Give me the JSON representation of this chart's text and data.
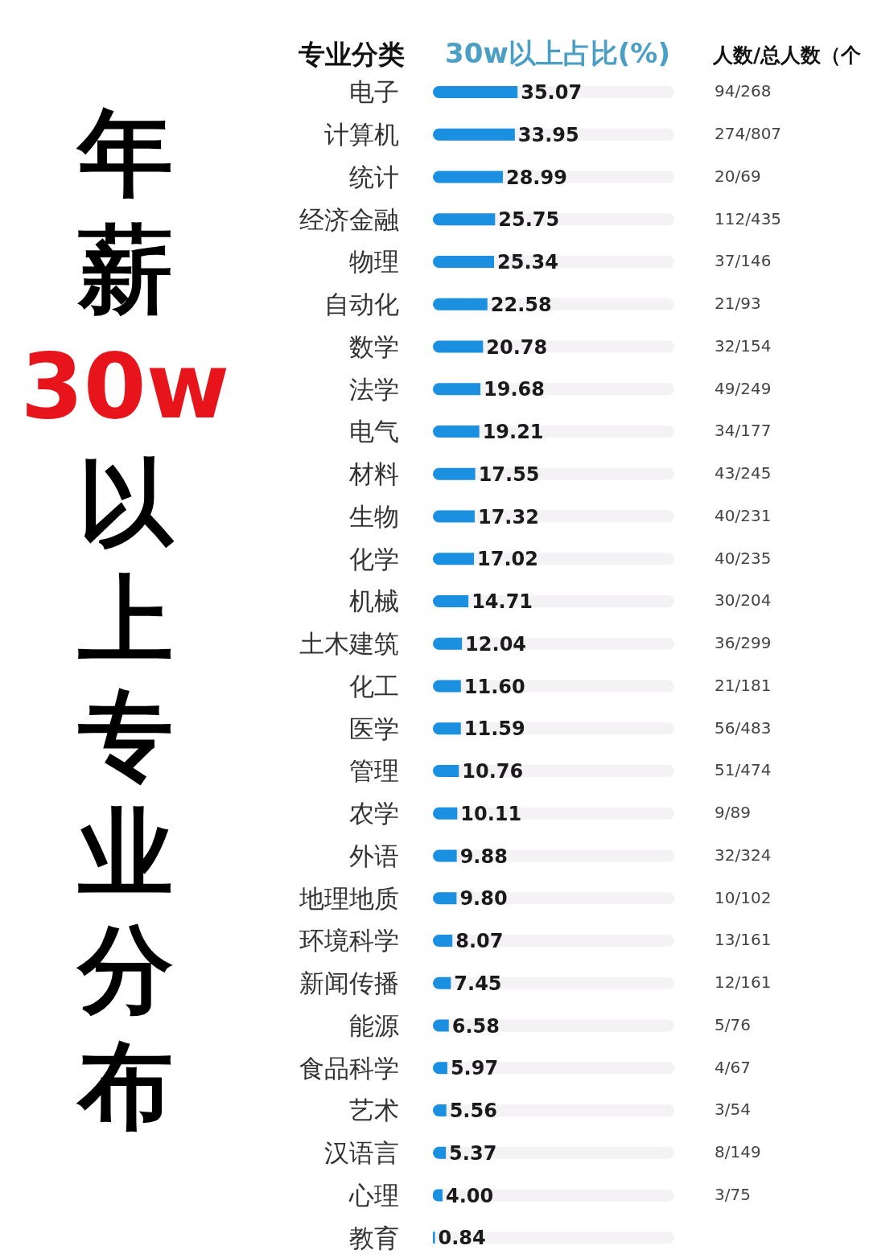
{
  "chart_data": {
    "type": "bar",
    "orientation": "horizontal",
    "title": "年薪30w以上专业分布",
    "ylabel": "专业分类",
    "xlabel": "30w以上占比(%)",
    "categories": [
      "电子",
      "计算机",
      "统计",
      "经济金融",
      "物理",
      "自动化",
      "数学",
      "法学",
      "电气",
      "材料",
      "生物",
      "化学",
      "机械",
      "土木建筑",
      "化工",
      "医学",
      "管理",
      "农学",
      "外语",
      "地理地质",
      "环境科学",
      "新闻传播",
      "能源",
      "食品科学",
      "艺术",
      "汉语言",
      "心理",
      "教育"
    ],
    "values": [
      35.07,
      33.95,
      28.99,
      25.75,
      25.34,
      22.58,
      20.78,
      19.68,
      19.21,
      17.55,
      17.32,
      17.02,
      14.71,
      12.04,
      11.6,
      11.59,
      10.76,
      10.11,
      9.88,
      9.8,
      8.07,
      7.45,
      6.58,
      5.97,
      5.56,
      5.37,
      4.0,
      0.84
    ],
    "value_labels": [
      "35.07",
      "33.95",
      "28.99",
      "25.75",
      "25.34",
      "22.58",
      "20.78",
      "19.68",
      "19.21",
      "17.55",
      "17.32",
      "17.02",
      "14.71",
      "12.04",
      "11.60",
      "11.59",
      "10.76",
      "10.11",
      "9.88",
      "9.80",
      "8.07",
      "7.45",
      "6.58",
      "5.97",
      "5.56",
      "5.37",
      "4.00",
      "0.84"
    ],
    "color": "#1b8fe0",
    "xlim": [
      0,
      100
    ],
    "tick_labels": "y",
    "legend": false,
    "grid": false,
    "annotations": [
      "人数/总人数（个",
      "94/268",
      "274/807",
      "20/69",
      "112/435",
      "37/146",
      "21/93",
      "32/154",
      "49/249",
      "34/177",
      "43/245",
      "40/231",
      "40/235",
      "30/204",
      "36/299",
      "21/181",
      "56/483",
      "51/474",
      "9/89",
      "32/324",
      "10/102",
      "13/161",
      "12/161",
      "5/76",
      "4/67",
      "3/54",
      "8/149",
      "3/75"
    ]
  }
}
